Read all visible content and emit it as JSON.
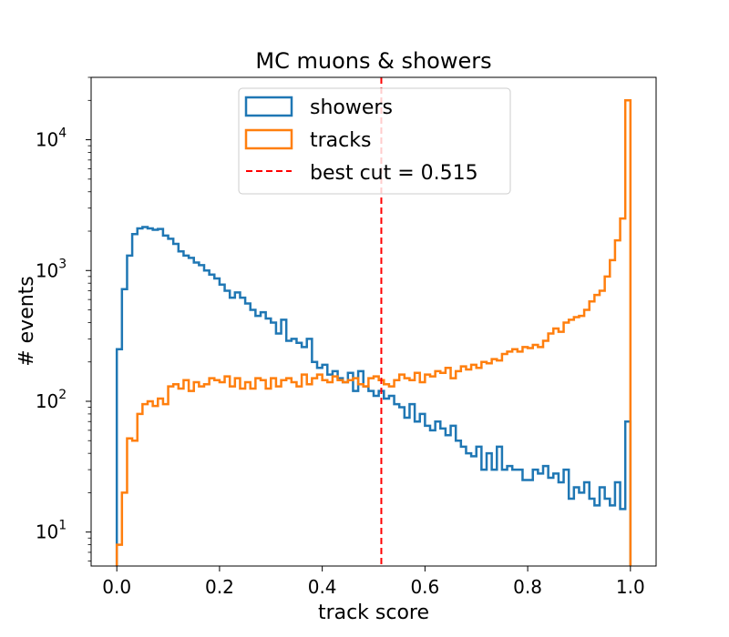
{
  "chart_data": {
    "type": "histogram",
    "title": "MC muons & showers",
    "xlabel": "track score",
    "ylabel": "# events",
    "xlim": [
      -0.05,
      1.05
    ],
    "ylim": [
      5.5,
      30000
    ],
    "yscale": "log",
    "x_ticks": [
      0.0,
      0.2,
      0.4,
      0.6,
      0.8,
      1.0
    ],
    "x_tick_labels": [
      "0.0",
      "0.2",
      "0.4",
      "0.6",
      "0.8",
      "1.0"
    ],
    "y_ticks": [
      10,
      100,
      1000,
      10000
    ],
    "y_tick_base": "10",
    "y_tick_exponents": [
      "1",
      "2",
      "3",
      "4"
    ],
    "grid": false,
    "legend_position": "upper center",
    "bin_edges_range": [
      0.0,
      1.0
    ],
    "n_bins": 100,
    "series": [
      {
        "name": "showers",
        "color": "#1f77b4",
        "values": [
          250,
          720,
          1300,
          1900,
          2100,
          2150,
          2100,
          2050,
          2080,
          1850,
          1750,
          1600,
          1400,
          1300,
          1250,
          1150,
          1100,
          1000,
          930,
          870,
          780,
          700,
          620,
          680,
          620,
          560,
          500,
          450,
          480,
          430,
          400,
          330,
          420,
          290,
          300,
          280,
          260,
          300,
          200,
          180,
          190,
          160,
          170,
          150,
          140,
          165,
          120,
          170,
          130,
          120,
          110,
          120,
          105,
          110,
          95,
          90,
          75,
          95,
          70,
          80,
          65,
          60,
          70,
          62,
          55,
          65,
          50,
          45,
          40,
          38,
          45,
          30,
          40,
          30,
          45,
          30,
          32,
          30,
          30,
          25,
          25,
          30,
          28,
          32,
          26,
          28,
          24,
          30,
          18,
          22,
          20,
          24,
          18,
          16,
          22,
          18,
          16,
          24,
          15,
          70
        ]
      },
      {
        "name": "tracks",
        "color": "#ff7f0e",
        "values": [
          8,
          20,
          52,
          50,
          80,
          95,
          100,
          92,
          105,
          95,
          130,
          135,
          125,
          145,
          120,
          140,
          130,
          135,
          150,
          145,
          140,
          155,
          130,
          150,
          125,
          140,
          125,
          150,
          145,
          125,
          150,
          130,
          145,
          150,
          140,
          130,
          160,
          135,
          150,
          160,
          145,
          140,
          155,
          145,
          140,
          145,
          150,
          135,
          130,
          150,
          155,
          145,
          135,
          130,
          145,
          160,
          150,
          145,
          165,
          140,
          160,
          155,
          170,
          165,
          180,
          150,
          170,
          185,
          175,
          190,
          180,
          200,
          195,
          210,
          205,
          230,
          240,
          250,
          240,
          260,
          255,
          270,
          260,
          290,
          330,
          360,
          340,
          400,
          420,
          440,
          450,
          500,
          580,
          650,
          700,
          900,
          1200,
          1700,
          2500,
          20000
        ]
      }
    ],
    "cut_line": {
      "label": "best cut = 0.515",
      "x": 0.515,
      "color": "#ff0000"
    }
  }
}
